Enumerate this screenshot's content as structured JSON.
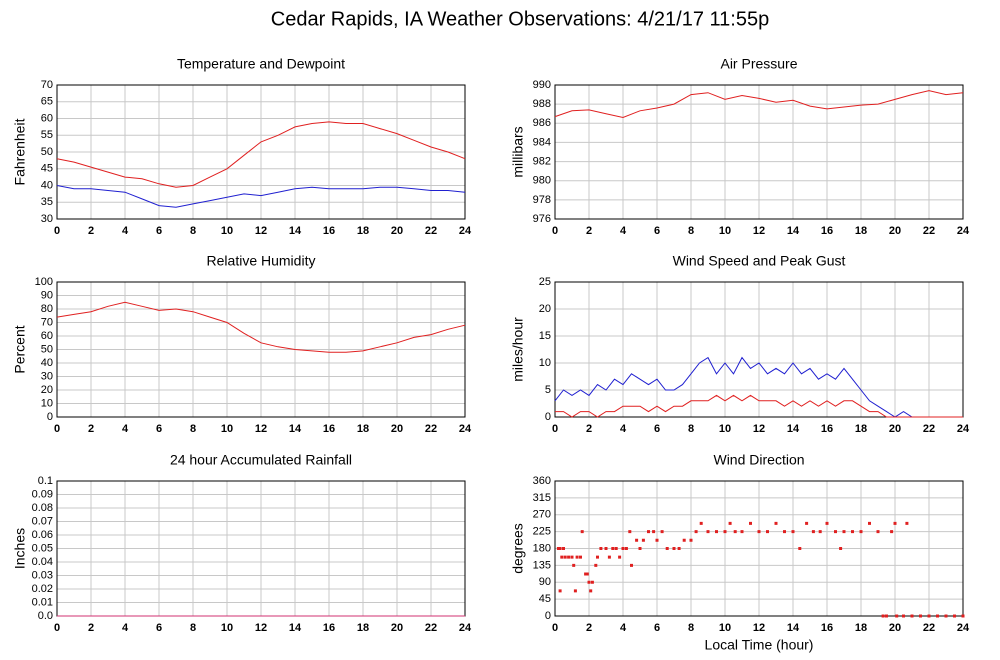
{
  "title": "Cedar Rapids, IA Weather Observations: 4/21/17 11:55p",
  "chart_data": [
    {
      "type": "line",
      "title": "Temperature and Dewpoint",
      "ylabel": "Fahrenheit",
      "x": [
        0,
        1,
        2,
        3,
        4,
        5,
        6,
        7,
        8,
        9,
        10,
        11,
        12,
        13,
        14,
        15,
        16,
        17,
        18,
        19,
        20,
        21,
        22,
        23,
        24
      ],
      "series": [
        {
          "color": "#e02020",
          "values": [
            48,
            47,
            45.5,
            44,
            42.5,
            42,
            40.5,
            39.5,
            40,
            42.5,
            45,
            49,
            53,
            55,
            57.5,
            58.5,
            59,
            58.5,
            58.5,
            57,
            55.5,
            53.5,
            51.5,
            50,
            48
          ]
        },
        {
          "color": "#2020d0",
          "values": [
            40,
            39,
            39,
            38.5,
            38,
            36,
            34,
            33.5,
            34.5,
            35.5,
            36.5,
            37.5,
            37,
            38,
            39,
            39.5,
            39,
            39,
            39,
            39.5,
            39.5,
            39,
            38.5,
            38.5,
            38
          ]
        }
      ],
      "xlim": [
        0,
        24
      ],
      "xticks": [
        0,
        2,
        4,
        6,
        8,
        10,
        12,
        14,
        16,
        18,
        20,
        22,
        24
      ],
      "ylim": [
        30,
        70
      ],
      "yticks": [
        30,
        35,
        40,
        45,
        50,
        55,
        60,
        65,
        70
      ],
      "grid": true
    },
    {
      "type": "line",
      "title": "Air Pressure",
      "ylabel": "millibars",
      "x": [
        0,
        1,
        2,
        3,
        4,
        5,
        6,
        7,
        8,
        9,
        10,
        11,
        12,
        13,
        14,
        15,
        16,
        17,
        18,
        19,
        20,
        21,
        22,
        23,
        24
      ],
      "series": [
        {
          "color": "#e02020",
          "values": [
            986.7,
            987.3,
            987.4,
            987,
            986.6,
            987.3,
            987.6,
            988,
            989,
            989.2,
            988.5,
            988.9,
            988.6,
            988.2,
            988.4,
            987.8,
            987.5,
            987.7,
            987.9,
            988,
            988.5,
            989,
            989.4,
            989,
            989.2
          ]
        }
      ],
      "xlim": [
        0,
        24
      ],
      "xticks": [
        0,
        2,
        4,
        6,
        8,
        10,
        12,
        14,
        16,
        18,
        20,
        22,
        24
      ],
      "ylim": [
        976,
        990
      ],
      "yticks": [
        976,
        978,
        980,
        982,
        984,
        986,
        988,
        990
      ],
      "grid": true
    },
    {
      "type": "line",
      "title": "Relative Humidity",
      "ylabel": "Percent",
      "x": [
        0,
        1,
        2,
        3,
        4,
        5,
        6,
        7,
        8,
        9,
        10,
        11,
        12,
        13,
        14,
        15,
        16,
        17,
        18,
        19,
        20,
        21,
        22,
        23,
        24
      ],
      "series": [
        {
          "color": "#e02020",
          "values": [
            74,
            76,
            78,
            82,
            85,
            82,
            79,
            80,
            78,
            74,
            70,
            62,
            55,
            52,
            50,
            49,
            48,
            48,
            49,
            52,
            55,
            59,
            61,
            65,
            68
          ]
        }
      ],
      "xlim": [
        0,
        24
      ],
      "xticks": [
        0,
        2,
        4,
        6,
        8,
        10,
        12,
        14,
        16,
        18,
        20,
        22,
        24
      ],
      "ylim": [
        0,
        100
      ],
      "yticks": [
        0,
        10,
        20,
        30,
        40,
        50,
        60,
        70,
        80,
        90,
        100
      ],
      "grid": true
    },
    {
      "type": "line",
      "title": "Wind Speed and Peak Gust",
      "ylabel": "miles/hour",
      "x": [
        0,
        0.5,
        1,
        1.5,
        2,
        2.5,
        3,
        3.5,
        4,
        4.5,
        5,
        5.5,
        6,
        6.5,
        7,
        7.5,
        8,
        8.5,
        9,
        9.5,
        10,
        10.5,
        11,
        11.5,
        12,
        12.5,
        13,
        13.5,
        14,
        14.5,
        15,
        15.5,
        16,
        16.5,
        17,
        17.5,
        18,
        18.5,
        19,
        19.5,
        20,
        20.5,
        21,
        21.5,
        22,
        22.5,
        23,
        23.5,
        24
      ],
      "series": [
        {
          "color": "#2020d0",
          "values": [
            3,
            5,
            4,
            5,
            4,
            6,
            5,
            7,
            6,
            8,
            7,
            6,
            7,
            5,
            5,
            6,
            8,
            10,
            11,
            8,
            10,
            8,
            11,
            9,
            10,
            8,
            9,
            8,
            10,
            8,
            9,
            7,
            8,
            7,
            9,
            7,
            5,
            3,
            2,
            1,
            0,
            1,
            0,
            0,
            0,
            0,
            0,
            0,
            0
          ]
        },
        {
          "color": "#e02020",
          "values": [
            1,
            1,
            0,
            1,
            1,
            0,
            1,
            1,
            2,
            2,
            2,
            1,
            2,
            1,
            2,
            2,
            3,
            3,
            3,
            4,
            3,
            4,
            3,
            4,
            3,
            3,
            3,
            2,
            3,
            2,
            3,
            2,
            3,
            2,
            3,
            3,
            2,
            1,
            1,
            0,
            0,
            0,
            0,
            0,
            0,
            0,
            0,
            0,
            0
          ]
        }
      ],
      "xlim": [
        0,
        24
      ],
      "xticks": [
        0,
        2,
        4,
        6,
        8,
        10,
        12,
        14,
        16,
        18,
        20,
        22,
        24
      ],
      "ylim": [
        0,
        25
      ],
      "yticks": [
        0,
        5,
        10,
        15,
        20,
        25
      ],
      "grid": true
    },
    {
      "type": "line",
      "title": "24 hour Accumulated Rainfall",
      "ylabel": "Inches",
      "x": [
        0,
        24
      ],
      "series": [
        {
          "color": "#d03070",
          "values": [
            0,
            0
          ]
        }
      ],
      "xlim": [
        0,
        24
      ],
      "xticks": [
        0,
        2,
        4,
        6,
        8,
        10,
        12,
        14,
        16,
        18,
        20,
        22,
        24
      ],
      "ylim": [
        0,
        0.1
      ],
      "yticks": [
        {
          "value": 0,
          "label": "0.0"
        },
        0.01,
        0.02,
        0.03,
        0.04,
        0.05,
        0.06,
        0.07,
        0.08,
        0.09,
        0.1
      ],
      "grid": true
    },
    {
      "type": "scatter",
      "title": "Wind Direction",
      "ylabel": "degrees",
      "xlabel": "Local Time (hour)",
      "color": "#e02020",
      "x": [
        0.2,
        0.3,
        0.3,
        0.4,
        0.5,
        0.6,
        0.8,
        1.0,
        1.1,
        1.2,
        1.3,
        1.5,
        1.6,
        1.8,
        1.9,
        2.0,
        2.1,
        2.2,
        2.4,
        2.5,
        2.7,
        3.0,
        3.2,
        3.4,
        3.6,
        3.8,
        4.0,
        4.2,
        4.4,
        4.5,
        4.8,
        5.0,
        5.2,
        5.5,
        5.8,
        6.0,
        6.3,
        6.6,
        7.0,
        7.3,
        7.6,
        8.0,
        8.3,
        8.6,
        9.0,
        9.5,
        10.0,
        10.3,
        10.6,
        11.0,
        11.5,
        12.0,
        12.5,
        13.0,
        13.5,
        14.0,
        14.4,
        14.8,
        15.2,
        15.6,
        16.0,
        16.5,
        16.8,
        17.0,
        17.5,
        18.0,
        18.5,
        19.0,
        19.3,
        19.5,
        19.8,
        20.0,
        20.1,
        20.5,
        20.7,
        21.0,
        21.5,
        22.0,
        22.5,
        23.0,
        23.5,
        24.0
      ],
      "values": [
        180,
        180,
        67,
        157,
        180,
        157,
        157,
        157,
        135,
        67,
        157,
        157,
        225,
        112,
        112,
        90,
        67,
        90,
        135,
        157,
        180,
        180,
        157,
        180,
        180,
        157,
        180,
        180,
        225,
        135,
        202,
        180,
        202,
        225,
        225,
        202,
        225,
        180,
        180,
        180,
        202,
        202,
        225,
        247,
        225,
        225,
        225,
        247,
        225,
        225,
        247,
        225,
        225,
        247,
        225,
        225,
        180,
        247,
        225,
        225,
        247,
        225,
        180,
        225,
        225,
        225,
        247,
        225,
        0,
        0,
        225,
        247,
        0,
        0,
        247,
        0,
        0,
        0,
        0,
        0,
        0,
        0
      ],
      "xlim": [
        0,
        24
      ],
      "xticks": [
        0,
        2,
        4,
        6,
        8,
        10,
        12,
        14,
        16,
        18,
        20,
        22,
        24
      ],
      "ylim": [
        0,
        360
      ],
      "yticks": [
        0,
        45,
        90,
        135,
        180,
        225,
        270,
        315,
        360
      ],
      "grid": true
    }
  ]
}
